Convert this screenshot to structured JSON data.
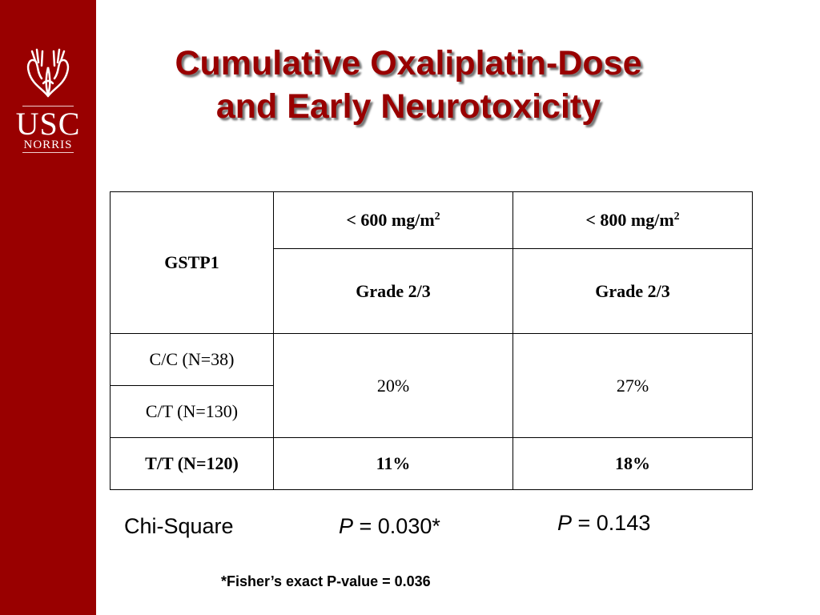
{
  "logo": {
    "main": "USC",
    "sub": "NORRIS"
  },
  "title": {
    "line1": "Cumulative Oxaliplatin-Dose",
    "line2": "and Early Neurotoxicity"
  },
  "table": {
    "rowheader": "GSTP1",
    "col1_dose": "< 600 mg/m",
    "col2_dose": "< 800 mg/m",
    "dose_exponent": "2",
    "grade_label": "Grade 2/3",
    "rows": [
      {
        "label": "C/C (N=38)"
      },
      {
        "label": "C/T (N=130)"
      },
      {
        "label": "T/T (N=120)",
        "col1": "11%",
        "col2": "18%"
      }
    ],
    "merged_col1": "20%",
    "merged_col2": "27%"
  },
  "stats": {
    "label": "Chi-Square",
    "p_symbol": "P",
    "p1_value": " = 0.030*",
    "p2_value": " = 0.143"
  },
  "footnote": "*Fisher’s exact P-value = 0.036",
  "colors": {
    "brand": "#990000",
    "divider_highlight": "#66e8f0"
  }
}
